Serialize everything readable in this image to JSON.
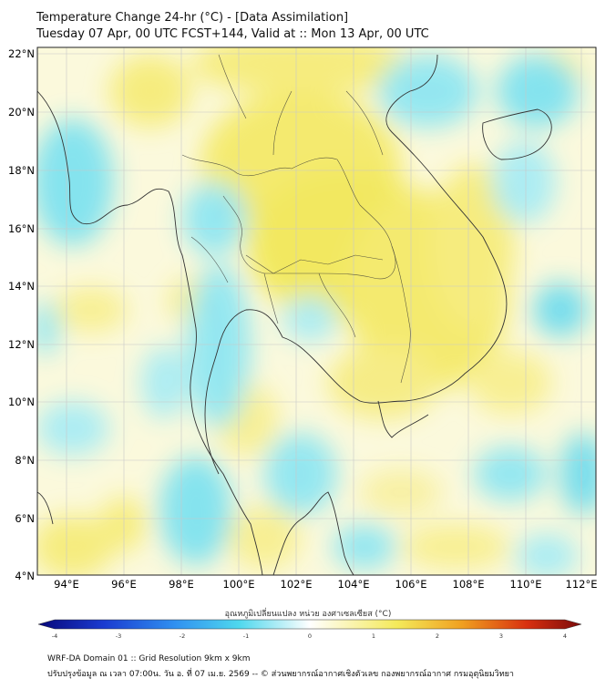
{
  "title": {
    "line1": "Temperature Change 24-hr (°C) - [Data Assimilation]",
    "line2": "Tuesday 07 Apr, 00 UTC FCST+144, Valid at :: Mon 13 Apr, 00 UTC"
  },
  "map": {
    "lat_labels": [
      "22°N",
      "20°N",
      "18°N",
      "16°N",
      "14°N",
      "12°N",
      "10°N",
      "8°N",
      "6°N",
      "4°N"
    ],
    "lon_labels": [
      "94°E",
      "96°E",
      "98°E",
      "100°E",
      "102°E",
      "104°E",
      "106°E",
      "108°E",
      "110°E",
      "112°E"
    ],
    "lon_range": [
      93,
      112.5
    ],
    "lat_range": [
      4,
      22.2
    ],
    "gridlines": true
  },
  "colorbar": {
    "title": "อุณหภูมิเปลี่ยนแปลง หน่วย องศาเซลเซียส (°C)",
    "ticks": [
      "-4",
      "-3",
      "-2",
      "-1",
      "0",
      "1",
      "2",
      "3",
      "4"
    ],
    "range": [
      -4,
      4
    ],
    "colors": {
      "min": "#08087a",
      "cold": "#2f7ff0",
      "cool": "#4fd8ee",
      "neutral": "#ffffff",
      "warm": "#f4ea5a",
      "hot": "#f0a020",
      "max": "#7a0a0a"
    }
  },
  "footer": {
    "line1": "WRF-DA Domain 01 :: Grid Resolution 9km x 9km",
    "line2": "ปรับปรุงข้อมูล ณ เวลา 07:00น. วัน อ. ที่ 07 เม.ย. 2569 -- © ส่วนพยากรณ์อากาศเชิงตัวเลข กองพยากรณ์อากาศ กรมอุตุนิยมวิทยา"
  }
}
